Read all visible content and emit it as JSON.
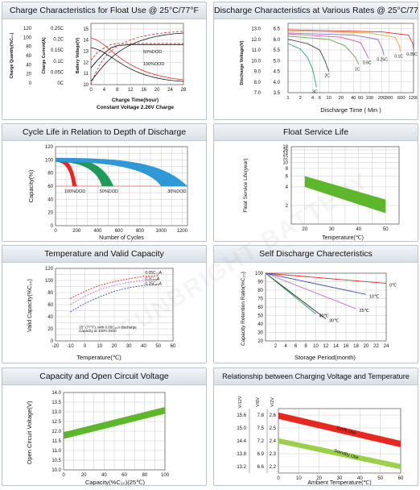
{
  "watermark": "SUNBRIGHT BATTERY",
  "panels": {
    "charge": {
      "title": "Charge Characteristics for Float Use @ 25°C/77°F",
      "ylabel_qty": "Charge Quantity(%C₂₀)",
      "ylabel_cur": "Charge Current(A)",
      "ylabel_volt": "Battery Voltage(V)",
      "xlabel": "Charge Time(hour)",
      "note": "Constant Voltage 2.26V Charge",
      "label_50": "50%DOD",
      "label_100": "100%DOD"
    },
    "discharge": {
      "title": "Discharge Characteristics at Various Rates @ 25°C/77°F",
      "ylabel": "Discharge Voltage(V)",
      "xlabel": "Discharge Time ( Min )"
    },
    "cycle": {
      "title": "Cycle Life in Relation to Depth of Discharge",
      "ylabel": "Capacity(%)",
      "xlabel": "Number of Cycles"
    },
    "float": {
      "title": "Float Service Life",
      "ylabel": "Float Service Life(year)",
      "xlabel": "Temperature(℃)"
    },
    "temp": {
      "title": "Temperature and Valid Capacity",
      "ylabel": "Valid Capacity(%C₂₀)",
      "xlabel": "Temperature(℃)",
      "note1": "25° (77°F), with 0.05C₂₀A discharge",
      "note2": "Capacity at 100% DOD"
    },
    "self": {
      "title": "Self Discharge Charecteristics",
      "ylabel": "Capacity Retention Ratio(%C₂₀)",
      "xlabel": "Storage Period(month)"
    },
    "ocv": {
      "title": "Capacity and Open Circuit Voltage",
      "ylabel": "Open Circuit Voltage(V)",
      "xlabel": "Capacity(%C₂₀)(25℃)"
    },
    "relcv": {
      "title": "Relationship between Charging Voltage and Temperature",
      "xlabel": "Ambient Temperature(℃)",
      "col1": "V/12V",
      "col2": "V/6V",
      "col3": "V/2V",
      "cycle_label": "Cycle Use",
      "standby_label": "Standby Use"
    }
  },
  "colors": {
    "green": "#5cb82a",
    "red": "#e8281e",
    "lime": "#9bd14a",
    "grid": "#c9c9c9",
    "axis": "#555555"
  },
  "chart_data": [
    {
      "type": "line",
      "title": "Charge Characteristics for Float Use @ 25°C/77°F",
      "xlabel": "Charge Time(hour)",
      "x_ticks": [
        0,
        4,
        8,
        12,
        16,
        20,
        24,
        28
      ],
      "y_axes": [
        {
          "label": "Charge Quantity(%C₂₀)",
          "ticks": [
            0,
            20,
            40,
            60,
            80,
            100,
            120
          ]
        },
        {
          "label": "Charge Current(A)",
          "ticks": [
            "0C",
            "0.05C",
            "0.1C",
            "0.15C",
            "0.2C",
            "0.25C"
          ]
        },
        {
          "label": "Battery Voltage(V)",
          "ticks": [
            10,
            11,
            12,
            13,
            14,
            15
          ]
        }
      ],
      "series": [
        {
          "name": "50%DOD",
          "color": "#e8281e",
          "x": [
            0,
            2,
            4,
            6,
            8,
            12,
            16,
            20,
            24,
            28
          ],
          "y": [
            12.2,
            12.9,
            13.3,
            13.6,
            13.7,
            13.7,
            13.7,
            13.7,
            13.7,
            13.7
          ]
        },
        {
          "name": "100%DOD",
          "color": "#111111",
          "x": [
            0,
            2,
            4,
            6,
            8,
            12,
            16,
            20,
            24,
            28
          ],
          "y": [
            11.5,
            12.2,
            12.8,
            13.3,
            13.5,
            13.6,
            13.6,
            13.6,
            13.6,
            13.6
          ]
        }
      ]
    },
    {
      "type": "line",
      "title": "Discharge Characteristics at Various Rates @ 25°C/77°F",
      "xlabel": "Discharge Time ( Min )",
      "ylabel": "Discharge Voltage(V)",
      "x_ticks": [
        1,
        2,
        4,
        6,
        10,
        20,
        40,
        60,
        100,
        200,
        300,
        600,
        1200
      ],
      "y_ticks_12v": [
        7.0,
        8.0,
        9.0,
        10.0,
        11.0,
        12.0,
        13.0
      ],
      "y_ticks_6v": [
        3.5,
        4.0,
        4.5,
        5.0,
        5.5,
        6.0,
        6.5
      ],
      "series": [
        {
          "name": "3C",
          "color": "#2aa86a",
          "x": [
            1,
            2,
            3,
            4,
            5
          ],
          "y": [
            11.6,
            11.1,
            10.3,
            9.2,
            7.5
          ]
        },
        {
          "name": "2C",
          "color": "#444444",
          "x": [
            1,
            3,
            6,
            8,
            10
          ],
          "y": [
            12.0,
            11.6,
            11.0,
            10.0,
            9.0
          ]
        },
        {
          "name": "1C",
          "color": "#6aa84f",
          "x": [
            1,
            10,
            25,
            45,
            55
          ],
          "y": [
            12.3,
            12.0,
            11.4,
            10.3,
            9.6
          ]
        },
        {
          "name": "0.6C",
          "color": "#e0569b",
          "x": [
            1,
            20,
            60,
            85,
            95
          ],
          "y": [
            12.5,
            12.2,
            11.7,
            10.6,
            10.2
          ]
        },
        {
          "name": "0.25C",
          "color": "#8a6bd1",
          "x": [
            1,
            40,
            160,
            210,
            225
          ],
          "y": [
            12.6,
            12.4,
            12.0,
            11.0,
            10.5
          ]
        },
        {
          "name": "0.1C",
          "color": "#e8a23c",
          "x": [
            1,
            100,
            420,
            540,
            570
          ],
          "y": [
            12.8,
            12.6,
            12.2,
            11.4,
            10.8
          ]
        },
        {
          "name": "0.05C",
          "color": "#e8281e",
          "x": [
            1,
            200,
            900,
            1150,
            1200
          ],
          "y": [
            12.9,
            12.7,
            12.4,
            11.6,
            11.0
          ]
        }
      ]
    },
    {
      "type": "area",
      "title": "Cycle Life in Relation to Depth of Discharge",
      "xlabel": "Number of Cycles",
      "ylabel": "Capacity(%)",
      "x_ticks": [
        0,
        200,
        400,
        600,
        800,
        1000,
        1200
      ],
      "y_ticks": [
        0,
        20,
        40,
        60,
        80,
        100,
        120
      ],
      "series": [
        {
          "name": "100%DOD",
          "color": "#e8281e",
          "end_cycles": 200
        },
        {
          "name": "50%DOD",
          "color": "#1f9a5a",
          "end_cycles": 550
        },
        {
          "name": "30%DOD",
          "color": "#2f98d6",
          "end_cycles": 1250
        }
      ]
    },
    {
      "type": "area",
      "title": "Float Service Life",
      "xlabel": "Temperature(℃)",
      "ylabel": "Float Service Life(year)",
      "x_ticks": [
        20,
        30,
        40,
        50
      ],
      "y_ticks": [
        1,
        2,
        4,
        6,
        8,
        10,
        12,
        14,
        16,
        18
      ],
      "band": {
        "color": "#5cb82a",
        "x": [
          20,
          50
        ],
        "upper": [
          6,
          2.5
        ],
        "lower": [
          4,
          1.5
        ]
      }
    },
    {
      "type": "line",
      "title": "Temperature and Valid Capacity",
      "xlabel": "Temperature(℃)",
      "ylabel": "Valid Capacity(%C₂₀)",
      "x_ticks": [
        -20,
        -10,
        0,
        10,
        20,
        30,
        40,
        50,
        60
      ],
      "y_ticks": [
        0,
        20,
        40,
        60,
        80,
        100,
        120
      ],
      "series": [
        {
          "name": "0.05C₂₀A",
          "color": "#e8281e",
          "x": [
            -10,
            0,
            10,
            20,
            30,
            40,
            50
          ],
          "y": [
            70,
            82,
            92,
            98,
            103,
            107,
            108
          ]
        },
        {
          "name": "0.1C₂₀A",
          "color": "#c26fd1",
          "x": [
            -10,
            0,
            10,
            20,
            30,
            40,
            50
          ],
          "y": [
            60,
            74,
            85,
            92,
            97,
            100,
            101
          ]
        },
        {
          "name": "0.25C₂₀A",
          "color": "#3a4bbd",
          "x": [
            -10,
            0,
            10,
            20,
            30,
            40,
            50
          ],
          "y": [
            48,
            62,
            73,
            82,
            88,
            92,
            93
          ]
        }
      ]
    },
    {
      "type": "line",
      "title": "Self Discharge Charecteristics",
      "xlabel": "Storage Period(month)",
      "ylabel": "Capacity Retention Ratio(%C₂₀)",
      "x_ticks": [
        0,
        2,
        4,
        6,
        8,
        10,
        12,
        14,
        16,
        18,
        20,
        22,
        24
      ],
      "y_ticks": [
        20,
        30,
        40,
        50,
        60,
        70,
        80,
        90,
        100
      ],
      "series": [
        {
          "name": "0℃",
          "color": "#e8281e",
          "x": [
            0,
            24
          ],
          "y": [
            100,
            88
          ]
        },
        {
          "name": "10℃",
          "color": "#3a4bbd",
          "x": [
            0,
            20
          ],
          "y": [
            100,
            75
          ]
        },
        {
          "name": "25℃",
          "color": "#c26fd1",
          "x": [
            0,
            18
          ],
          "y": [
            100,
            58
          ]
        },
        {
          "name": "30℃",
          "color": "#222222",
          "x": [
            0,
            12
          ],
          "y": [
            100,
            46
          ]
        },
        {
          "name": "40℃",
          "color": "#1f9a5a",
          "x": [
            0,
            10
          ],
          "y": [
            100,
            52
          ]
        }
      ]
    },
    {
      "type": "area",
      "title": "Capacity and Open Circuit Voltage",
      "xlabel": "Capacity(%C₂₀)(25℃)",
      "ylabel": "Open Circuit Voltage(V)",
      "x_ticks": [
        0,
        20,
        40,
        60,
        80,
        100
      ],
      "y_ticks": [
        10.0,
        10.5,
        11.0,
        11.5,
        12.0,
        12.5,
        13.0,
        13.5,
        14.0
      ],
      "band": {
        "color": "#5cb82a",
        "x": [
          0,
          100
        ],
        "upper": [
          11.95,
          13.25
        ],
        "lower": [
          11.6,
          12.9
        ]
      }
    },
    {
      "type": "area",
      "title": "Relationship between Charging Voltage and Temperature",
      "xlabel": "Ambient Temperature(℃)",
      "x_ticks": [
        0,
        10,
        20,
        30,
        40,
        50,
        60
      ],
      "y_ticks_12v": [
        13.2,
        13.8,
        14.4,
        15.0,
        15.6
      ],
      "y_ticks_6v": [
        6.6,
        6.9,
        7.2,
        7.5,
        7.8
      ],
      "y_ticks_2v": [
        2.2,
        2.3,
        2.4,
        2.5,
        2.6
      ],
      "series": [
        {
          "name": "Cycle Use",
          "color": "#e8281e",
          "x": [
            0,
            60
          ],
          "upper": [
            2.62,
            2.4
          ],
          "lower": [
            2.57,
            2.35
          ]
        },
        {
          "name": "Standby Use",
          "color": "#9bd14a",
          "x": [
            0,
            60
          ],
          "upper": [
            2.42,
            2.22
          ],
          "lower": [
            2.38,
            2.18
          ]
        }
      ]
    }
  ]
}
